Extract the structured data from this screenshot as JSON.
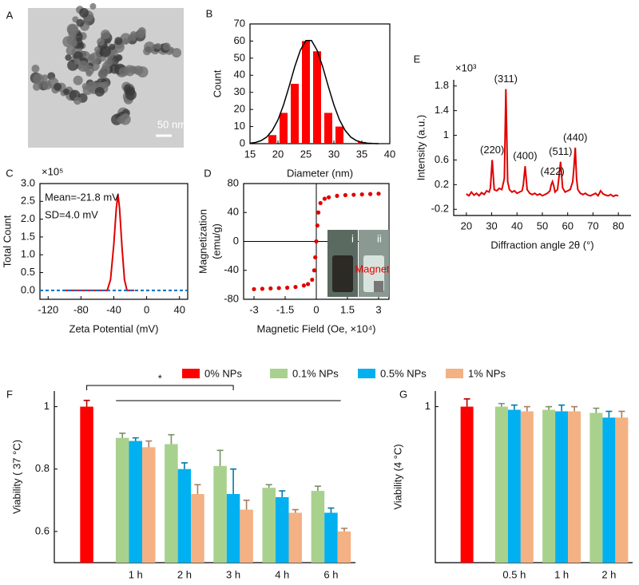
{
  "chart_data": [
    {
      "type": "image",
      "panel_label": "A",
      "scale_bar_label": "50 nm"
    },
    {
      "type": "histogram",
      "panel_label": "B",
      "xlabel": "Diameter (nm)",
      "ylabel": "Count",
      "color": "#ff0000",
      "bins": [
        18,
        20,
        22,
        24,
        26,
        28,
        30,
        32,
        34,
        36
      ],
      "counts": [
        5,
        18,
        35,
        60,
        54,
        18,
        10,
        0,
        1
      ],
      "fit": {
        "color": "#000000",
        "x": [
          15,
          16,
          17,
          18,
          19,
          20,
          21,
          22,
          23,
          24,
          25,
          26,
          27,
          28,
          29,
          30,
          31,
          32,
          33,
          34,
          35,
          36,
          37,
          38
        ],
        "values": [
          0.3,
          0.7,
          1.8,
          3.9,
          7.8,
          13.9,
          22.7,
          33.5,
          45.0,
          54.6,
          60.3,
          60.3,
          54.6,
          45.0,
          33.5,
          22.7,
          13.9,
          7.8,
          3.9,
          1.8,
          0.7,
          0.3,
          0.1,
          0
        ]
      },
      "xlim": [
        15,
        40
      ],
      "xticks": [
        15,
        20,
        25,
        30,
        35,
        40
      ],
      "ylim": [
        0,
        70
      ],
      "yticks": [
        0,
        10,
        20,
        30,
        40,
        50,
        60,
        70
      ]
    },
    {
      "type": "line",
      "panel_label": "C",
      "exponent_label": "×10⁵",
      "annotations": [
        "Mean=-21.8 mV",
        "SD=4.0 mV"
      ],
      "xlabel": "Zeta Potential (mV)",
      "ylabel": "Total Count",
      "xlim": [
        -130,
        50
      ],
      "xticks": [
        -120,
        -80,
        -40,
        0,
        40
      ],
      "ylim": [
        -0.25,
        3
      ],
      "yticks": [
        {
          "value": 0,
          "label": "0.0"
        },
        {
          "value": 0.5,
          "label": "0.5"
        },
        {
          "value": 1,
          "label": "1.0"
        },
        {
          "value": 1.5,
          "label": "1.5"
        },
        {
          "value": 2,
          "label": "2.0"
        },
        {
          "value": 2.5,
          "label": "2.5"
        },
        {
          "value": 3,
          "label": "3.0"
        }
      ],
      "series": [
        {
          "color": "#e00000",
          "x": [
            -100,
            -60,
            -48,
            -44,
            -40,
            -37,
            -35,
            -33,
            -30,
            -27,
            -24,
            -15
          ],
          "values": [
            0,
            0,
            0,
            0.3,
            1.3,
            2.3,
            2.7,
            2.3,
            1.2,
            0.3,
            0,
            0
          ]
        },
        {
          "color": "#0070c0",
          "dashed": true,
          "x": [
            -130,
            50
          ],
          "values": [
            0,
            0
          ]
        }
      ]
    },
    {
      "type": "scatter",
      "panel_label": "D",
      "xlabel": "Magnetic Field (Oe, ×10⁴)",
      "ylabel": [
        "Magnetization",
        "(emu/g)"
      ],
      "inset_labels": [
        "i",
        "ii",
        "Magnet"
      ],
      "xlim": [
        -3.5,
        3.5
      ],
      "xticks": [
        -3,
        -1.5,
        0,
        1.5,
        3
      ],
      "ylim": [
        -80,
        80
      ],
      "yticks": [
        -80,
        -40,
        0,
        40,
        80
      ],
      "series": [
        {
          "color": "#e00000",
          "x": [
            -3,
            -2.6,
            -2.2,
            -1.8,
            -1.4,
            -1.0,
            -0.6,
            -0.4,
            -0.2,
            -0.1,
            -0.05,
            0,
            0.05,
            0.1,
            0.2,
            0.4,
            0.6,
            1.0,
            1.4,
            1.8,
            2.2,
            2.6,
            3
          ],
          "values": [
            -66,
            -65.5,
            -65,
            -64.5,
            -64,
            -63,
            -61,
            -59,
            -53,
            -40,
            -22,
            0,
            22,
            40,
            53,
            59,
            61,
            63,
            64,
            64.5,
            65,
            65.5,
            66
          ]
        }
      ]
    },
    {
      "type": "line",
      "panel_label": "E",
      "exponent_label": "×10³",
      "xlabel": "Diffraction angle 2θ (°)",
      "ylabel": "Intensity (a.u.)",
      "xlim": [
        15,
        85
      ],
      "xticks": [
        20,
        30,
        40,
        50,
        60,
        70,
        80
      ],
      "ylim": [
        -0.3,
        1.9
      ],
      "yticks": [
        -0.2,
        0.2,
        0.6,
        1,
        1.4,
        1.8
      ],
      "peak_labels": [
        {
          "label": "(220)",
          "x": 30.2,
          "y": 0.6
        },
        {
          "label": "(311)",
          "x": 35.6,
          "y": 1.75
        },
        {
          "label": "(400)",
          "x": 43.2,
          "y": 0.5
        },
        {
          "label": "(422)",
          "x": 54,
          "y": 0.25
        },
        {
          "label": "(511)",
          "x": 57.2,
          "y": 0.57
        },
        {
          "label": "(440)",
          "x": 63,
          "y": 0.8
        }
      ],
      "series": [
        {
          "color": "#e00000",
          "x": [
            20,
            21,
            22,
            23,
            24,
            25,
            26,
            27,
            28,
            29,
            29.5,
            30.2,
            31,
            32,
            33,
            34,
            35,
            35.6,
            36.3,
            37,
            38,
            39,
            40,
            41,
            42,
            42.5,
            43.2,
            44,
            45,
            46,
            47,
            48,
            49,
            50,
            51,
            52,
            53,
            53.5,
            54,
            54.5,
            55,
            56,
            56.5,
            57.2,
            58,
            59,
            60,
            61,
            62,
            62.5,
            63,
            63.5,
            64,
            65,
            66,
            67,
            68,
            69,
            70,
            71,
            72,
            73,
            74,
            75,
            76,
            77,
            78,
            79,
            80
          ],
          "values": [
            0.05,
            0.02,
            0.08,
            0.03,
            0.06,
            0.02,
            0.07,
            0.04,
            0.1,
            0.08,
            0.15,
            0.6,
            0.12,
            0.1,
            0.14,
            0.12,
            0.3,
            1.75,
            0.25,
            0.12,
            0.08,
            0.1,
            0.06,
            0.08,
            0.1,
            0.2,
            0.5,
            0.12,
            0.06,
            0.04,
            0.06,
            0.03,
            0.05,
            0.02,
            0.04,
            0.06,
            0.1,
            0.2,
            0.25,
            0.18,
            0.08,
            0.12,
            0.3,
            0.57,
            0.15,
            0.08,
            0.1,
            0.12,
            0.25,
            0.5,
            0.8,
            0.3,
            0.12,
            0.06,
            0.04,
            0.06,
            0.03,
            0.02,
            0.04,
            0.06,
            0.02,
            0.1,
            0.05,
            0.03,
            0.02,
            0.04,
            0.01,
            0.03,
            0.02
          ]
        }
      ]
    },
    {
      "type": "bar",
      "panel_label": "F",
      "ylabel": "Viability ( 37 °C)",
      "significance": "*",
      "categories": [
        null,
        "1 h",
        "2 h",
        "3 h",
        "4 h",
        "6 h"
      ],
      "ylim": [
        0.5,
        1.05
      ],
      "yticks": [
        0.6,
        0.8,
        1
      ],
      "series": [
        {
          "name": "0% NPs",
          "color": "#ff0000",
          "values": [
            1.0,
            null,
            null,
            null,
            null,
            null
          ],
          "errors": [
            0.02,
            null,
            null,
            null,
            null,
            null
          ]
        },
        {
          "name": "0.1% NPs",
          "color": "#a9d18e",
          "values": [
            null,
            0.9,
            0.88,
            0.81,
            0.74,
            0.73
          ],
          "errors": [
            null,
            0.015,
            0.03,
            0.05,
            0.01,
            0.015
          ]
        },
        {
          "name": "0.5% NPs",
          "color": "#00b0f0",
          "values": [
            null,
            0.89,
            0.8,
            0.72,
            0.71,
            0.66
          ],
          "errors": [
            null,
            0.01,
            0.02,
            0.08,
            0.02,
            0.015
          ]
        },
        {
          "name": "1% NPs",
          "color": "#f4b183",
          "values": [
            null,
            0.87,
            0.72,
            0.67,
            0.66,
            0.6
          ],
          "errors": [
            null,
            0.02,
            0.03,
            0.03,
            0.01,
            0.01
          ]
        }
      ]
    },
    {
      "type": "bar",
      "panel_label": "G",
      "ylabel": "Viability (4 °C)",
      "categories": [
        null,
        "0.5 h",
        "1 h",
        "2 h"
      ],
      "ylim": [
        0.5,
        1.05
      ],
      "yticks": [
        1
      ],
      "series": [
        {
          "color": "#ff0000",
          "values": [
            1.0,
            null,
            null,
            null
          ],
          "errors": [
            0.025,
            null,
            null,
            null
          ]
        },
        {
          "color": "#a9d18e",
          "values": [
            null,
            1.0,
            0.99,
            0.98
          ],
          "errors": [
            null,
            0.01,
            0.01,
            0.015
          ]
        },
        {
          "color": "#00b0f0",
          "values": [
            null,
            0.99,
            0.985,
            0.965
          ],
          "errors": [
            null,
            0.015,
            0.02,
            0.02
          ]
        },
        {
          "color": "#f4b183",
          "values": [
            null,
            0.985,
            0.985,
            0.965
          ],
          "errors": [
            null,
            0.015,
            0.015,
            0.02
          ]
        }
      ]
    }
  ]
}
